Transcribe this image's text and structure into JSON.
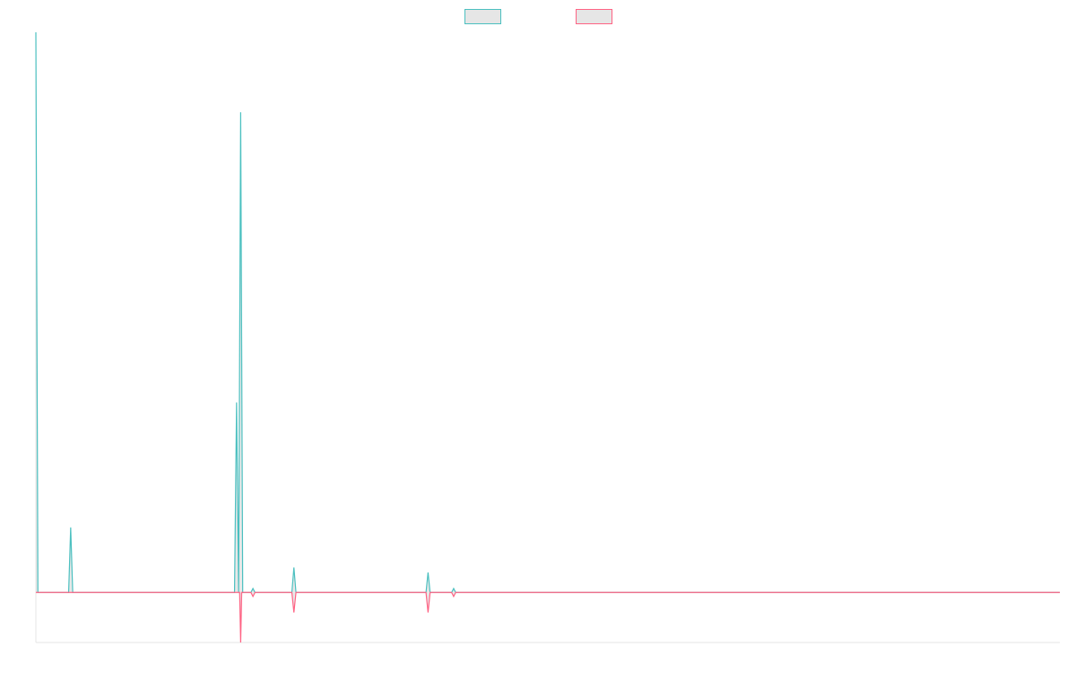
{
  "chart_data": {
    "type": "line",
    "title": "",
    "xlabel": "",
    "ylabel": "",
    "grid": false,
    "legend_position": "top-center",
    "x_domain": [
      0,
      100
    ],
    "ylim": [
      -5,
      56
    ],
    "series": [
      {
        "name": "",
        "color": "#4bc0c0",
        "fill": "rgba(210,210,210,0.5)",
        "points": [
          [
            0,
            56
          ],
          [
            0.2,
            0
          ],
          [
            3.2,
            0
          ],
          [
            3.4,
            6.5
          ],
          [
            3.6,
            0
          ],
          [
            19.4,
            0
          ],
          [
            19.6,
            19
          ],
          [
            19.8,
            0
          ],
          [
            20.0,
            48
          ],
          [
            20.2,
            0
          ],
          [
            21.0,
            0
          ],
          [
            21.2,
            0.4
          ],
          [
            21.4,
            0
          ],
          [
            25.0,
            0
          ],
          [
            25.2,
            2.5
          ],
          [
            25.4,
            0
          ],
          [
            38.1,
            0
          ],
          [
            38.3,
            2
          ],
          [
            38.5,
            0
          ],
          [
            40.6,
            0
          ],
          [
            40.8,
            0.4
          ],
          [
            41.0,
            0
          ],
          [
            100,
            0
          ]
        ]
      },
      {
        "name": "",
        "color": "#ff6384",
        "fill": "rgba(210,210,210,0.5)",
        "points": [
          [
            0,
            0
          ],
          [
            19.9,
            0
          ],
          [
            20.0,
            -5
          ],
          [
            20.1,
            0
          ],
          [
            21.0,
            0
          ],
          [
            21.2,
            -0.4
          ],
          [
            21.4,
            0
          ],
          [
            25.0,
            0
          ],
          [
            25.2,
            -2
          ],
          [
            25.4,
            0
          ],
          [
            38.1,
            0
          ],
          [
            38.3,
            -2
          ],
          [
            38.5,
            0
          ],
          [
            40.6,
            0
          ],
          [
            40.8,
            -0.4
          ],
          [
            41.0,
            0
          ],
          [
            100,
            0
          ]
        ]
      }
    ]
  }
}
